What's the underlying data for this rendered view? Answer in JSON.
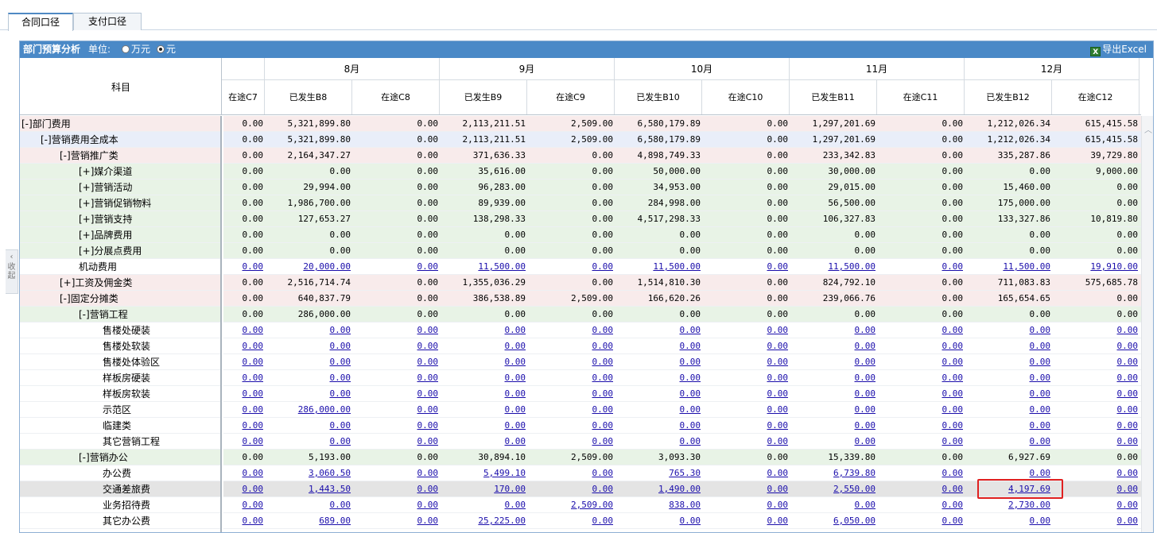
{
  "tabs": [
    {
      "label": "合同口径"
    },
    {
      "label": "支付口径"
    }
  ],
  "side_handle": {
    "label": "收起"
  },
  "panel": {
    "title": "部门预算分析",
    "unit_label": "单位:",
    "unit_options": [
      {
        "label": "万元",
        "selected": false
      },
      {
        "label": "元",
        "selected": true
      }
    ],
    "export_label": "导出Excel"
  },
  "header": {
    "subject": "科目",
    "months": [
      "8月",
      "9月",
      "10月",
      "11月",
      "12月"
    ],
    "columns": [
      "在途C7",
      "已发生B8",
      "在途C8",
      "已发生B9",
      "在途C9",
      "已发生B10",
      "在途C10",
      "已发生B11",
      "在途C11",
      "已发生B12",
      "在途C12"
    ]
  },
  "rows": [
    {
      "label": "[-]部门费用",
      "indent": 0,
      "bg": "#f8ebeb",
      "link": false,
      "values": [
        "0.00",
        "5,321,899.80",
        "0.00",
        "2,113,211.51",
        "2,509.00",
        "6,580,179.89",
        "0.00",
        "1,297,201.69",
        "0.00",
        "1,212,026.34",
        "615,415.58"
      ]
    },
    {
      "label": "[-]营销费用全成本",
      "indent": 1,
      "bg": "#e9eef9",
      "link": false,
      "values": [
        "0.00",
        "5,321,899.80",
        "0.00",
        "2,113,211.51",
        "2,509.00",
        "6,580,179.89",
        "0.00",
        "1,297,201.69",
        "0.00",
        "1,212,026.34",
        "615,415.58"
      ]
    },
    {
      "label": "[-]营销推广类",
      "indent": 2,
      "bg": "#f8ebeb",
      "link": false,
      "values": [
        "0.00",
        "2,164,347.27",
        "0.00",
        "371,636.33",
        "0.00",
        "4,898,749.33",
        "0.00",
        "233,342.83",
        "0.00",
        "335,287.86",
        "39,729.80"
      ]
    },
    {
      "label": "[+]媒介渠道",
      "indent": 3,
      "bg": "#e8f3e6",
      "link": false,
      "values": [
        "0.00",
        "0.00",
        "0.00",
        "35,616.00",
        "0.00",
        "50,000.00",
        "0.00",
        "30,000.00",
        "0.00",
        "0.00",
        "9,000.00"
      ]
    },
    {
      "label": "[+]营销活动",
      "indent": 3,
      "bg": "#e8f3e6",
      "link": false,
      "values": [
        "0.00",
        "29,994.00",
        "0.00",
        "96,283.00",
        "0.00",
        "34,953.00",
        "0.00",
        "29,015.00",
        "0.00",
        "15,460.00",
        "0.00"
      ]
    },
    {
      "label": "[+]营销促销物料",
      "indent": 3,
      "bg": "#e8f3e6",
      "link": false,
      "values": [
        "0.00",
        "1,986,700.00",
        "0.00",
        "89,939.00",
        "0.00",
        "284,998.00",
        "0.00",
        "56,500.00",
        "0.00",
        "175,000.00",
        "0.00"
      ]
    },
    {
      "label": "[+]营销支持",
      "indent": 3,
      "bg": "#e8f3e6",
      "link": false,
      "values": [
        "0.00",
        "127,653.27",
        "0.00",
        "138,298.33",
        "0.00",
        "4,517,298.33",
        "0.00",
        "106,327.83",
        "0.00",
        "133,327.86",
        "10,819.80"
      ]
    },
    {
      "label": "[+]品牌费用",
      "indent": 3,
      "bg": "#e8f3e6",
      "link": false,
      "values": [
        "0.00",
        "0.00",
        "0.00",
        "0.00",
        "0.00",
        "0.00",
        "0.00",
        "0.00",
        "0.00",
        "0.00",
        "0.00"
      ]
    },
    {
      "label": "[+]分展点费用",
      "indent": 3,
      "bg": "#e8f3e6",
      "link": false,
      "values": [
        "0.00",
        "0.00",
        "0.00",
        "0.00",
        "0.00",
        "0.00",
        "0.00",
        "0.00",
        "0.00",
        "0.00",
        "0.00"
      ]
    },
    {
      "label": "机动费用",
      "indent": 3,
      "bg": "#ffffff",
      "link": true,
      "values": [
        "0.00",
        "20,000.00",
        "0.00",
        "11,500.00",
        "0.00",
        "11,500.00",
        "0.00",
        "11,500.00",
        "0.00",
        "11,500.00",
        "19,910.00"
      ]
    },
    {
      "label": "[+]工资及佣金类",
      "indent": 2,
      "bg": "#f8ebeb",
      "link": false,
      "values": [
        "0.00",
        "2,516,714.74",
        "0.00",
        "1,355,036.29",
        "0.00",
        "1,514,810.30",
        "0.00",
        "824,792.10",
        "0.00",
        "711,083.83",
        "575,685.78"
      ]
    },
    {
      "label": "[-]固定分摊类",
      "indent": 2,
      "bg": "#f8ebeb",
      "link": false,
      "values": [
        "0.00",
        "640,837.79",
        "0.00",
        "386,538.89",
        "2,509.00",
        "166,620.26",
        "0.00",
        "239,066.76",
        "0.00",
        "165,654.65",
        "0.00"
      ]
    },
    {
      "label": "[-]营销工程",
      "indent": 3,
      "bg": "#e8f3e6",
      "link": false,
      "values": [
        "0.00",
        "286,000.00",
        "0.00",
        "0.00",
        "0.00",
        "0.00",
        "0.00",
        "0.00",
        "0.00",
        "0.00",
        "0.00"
      ]
    },
    {
      "label": "售楼处硬装",
      "indent": 4,
      "bg": "#ffffff",
      "link": true,
      "values": [
        "0.00",
        "0.00",
        "0.00",
        "0.00",
        "0.00",
        "0.00",
        "0.00",
        "0.00",
        "0.00",
        "0.00",
        "0.00"
      ]
    },
    {
      "label": "售楼处软装",
      "indent": 4,
      "bg": "#ffffff",
      "link": true,
      "values": [
        "0.00",
        "0.00",
        "0.00",
        "0.00",
        "0.00",
        "0.00",
        "0.00",
        "0.00",
        "0.00",
        "0.00",
        "0.00"
      ]
    },
    {
      "label": "售楼处体验区",
      "indent": 4,
      "bg": "#ffffff",
      "link": true,
      "values": [
        "0.00",
        "0.00",
        "0.00",
        "0.00",
        "0.00",
        "0.00",
        "0.00",
        "0.00",
        "0.00",
        "0.00",
        "0.00"
      ]
    },
    {
      "label": "样板房硬装",
      "indent": 4,
      "bg": "#ffffff",
      "link": true,
      "values": [
        "0.00",
        "0.00",
        "0.00",
        "0.00",
        "0.00",
        "0.00",
        "0.00",
        "0.00",
        "0.00",
        "0.00",
        "0.00"
      ]
    },
    {
      "label": "样板房软装",
      "indent": 4,
      "bg": "#ffffff",
      "link": true,
      "values": [
        "0.00",
        "0.00",
        "0.00",
        "0.00",
        "0.00",
        "0.00",
        "0.00",
        "0.00",
        "0.00",
        "0.00",
        "0.00"
      ]
    },
    {
      "label": "示范区",
      "indent": 4,
      "bg": "#ffffff",
      "link": true,
      "values": [
        "0.00",
        "286,000.00",
        "0.00",
        "0.00",
        "0.00",
        "0.00",
        "0.00",
        "0.00",
        "0.00",
        "0.00",
        "0.00"
      ]
    },
    {
      "label": "临建类",
      "indent": 4,
      "bg": "#ffffff",
      "link": true,
      "values": [
        "0.00",
        "0.00",
        "0.00",
        "0.00",
        "0.00",
        "0.00",
        "0.00",
        "0.00",
        "0.00",
        "0.00",
        "0.00"
      ]
    },
    {
      "label": "其它营销工程",
      "indent": 4,
      "bg": "#ffffff",
      "link": true,
      "values": [
        "0.00",
        "0.00",
        "0.00",
        "0.00",
        "0.00",
        "0.00",
        "0.00",
        "0.00",
        "0.00",
        "0.00",
        "0.00"
      ]
    },
    {
      "label": "[-]营销办公",
      "indent": 3,
      "bg": "#e8f3e6",
      "link": false,
      "values": [
        "0.00",
        "5,193.00",
        "0.00",
        "30,894.10",
        "2,509.00",
        "3,093.30",
        "0.00",
        "15,339.80",
        "0.00",
        "6,927.69",
        "0.00"
      ]
    },
    {
      "label": "办公费",
      "indent": 4,
      "bg": "#ffffff",
      "link": true,
      "values": [
        "0.00",
        "3,060.50",
        "0.00",
        "5,499.10",
        "0.00",
        "765.30",
        "0.00",
        "6,739.80",
        "0.00",
        "0.00",
        "0.00"
      ]
    },
    {
      "label": "交通差旅费",
      "indent": 4,
      "bg": "#e4e4e4",
      "link": true,
      "values": [
        "0.00",
        "1,443.50",
        "0.00",
        "170.00",
        "0.00",
        "1,490.00",
        "0.00",
        "2,550.00",
        "0.00",
        "4,197.69",
        "0.00"
      ]
    },
    {
      "label": "业务招待费",
      "indent": 4,
      "bg": "#ffffff",
      "link": true,
      "values": [
        "0.00",
        "0.00",
        "0.00",
        "0.00",
        "2,509.00",
        "838.00",
        "0.00",
        "0.00",
        "0.00",
        "2,730.00",
        "0.00"
      ]
    },
    {
      "label": "其它办公费",
      "indent": 4,
      "bg": "#ffffff",
      "link": true,
      "values": [
        "0.00",
        "689.00",
        "0.00",
        "25,225.00",
        "0.00",
        "0.00",
        "0.00",
        "6,050.00",
        "0.00",
        "0.00",
        "0.00"
      ]
    }
  ]
}
